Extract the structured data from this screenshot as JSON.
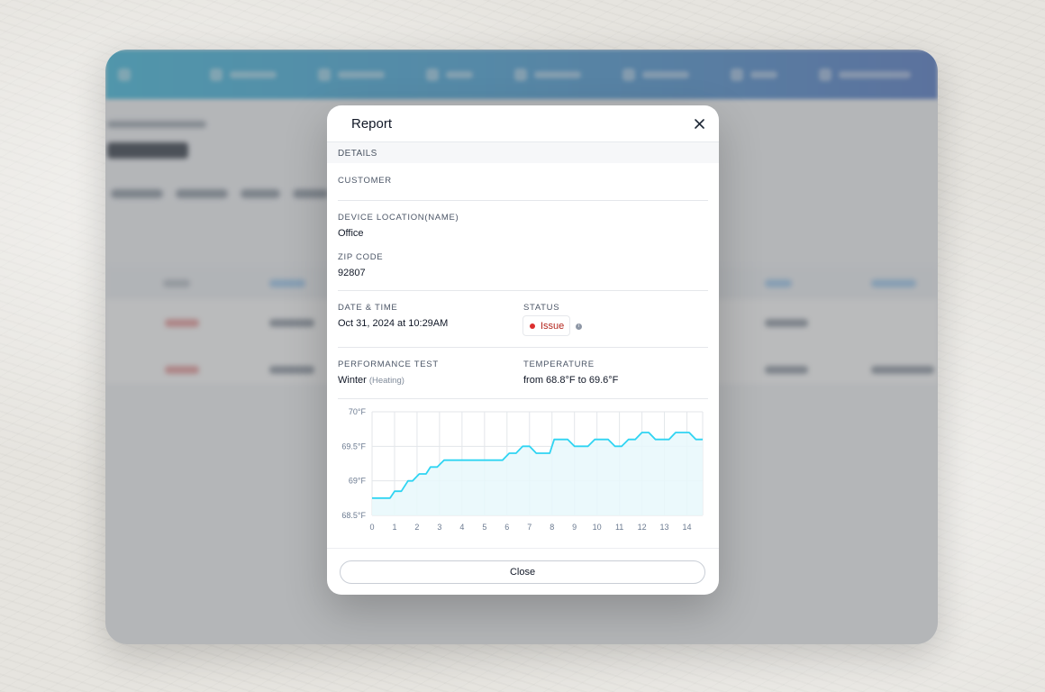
{
  "modal": {
    "title": "Report",
    "section_label": "DETAILS",
    "customer": {
      "label": "CUSTOMER",
      "value": ""
    },
    "device_location": {
      "label": "DEVICE LOCATION(NAME)",
      "value": "Office"
    },
    "zip": {
      "label": "ZIP CODE",
      "value": "92807"
    },
    "date_time": {
      "label": "DATE & TIME",
      "value": "Oct 31, 2024 at 10:29AM"
    },
    "status": {
      "label": "STATUS",
      "value": "Issue",
      "color": "#dc2e2e"
    },
    "performance_test": {
      "label": "PERFORMANCE TEST",
      "value": "Winter",
      "mode": "(Heating)"
    },
    "temperature": {
      "label": "TEMPERATURE",
      "value": "from 68.8°F to 69.6°F"
    },
    "close_label": "Close"
  },
  "chart_data": {
    "type": "area",
    "x": [
      0,
      0.3,
      0.6,
      0.8,
      1.0,
      1.3,
      1.6,
      1.8,
      2.1,
      2.4,
      2.6,
      2.9,
      3.2,
      3.6,
      4.0,
      4.5,
      5.0,
      5.5,
      5.8,
      6.1,
      6.4,
      6.7,
      7.0,
      7.3,
      7.6,
      7.9,
      8.1,
      8.4,
      8.7,
      9.0,
      9.3,
      9.6,
      9.9,
      10.2,
      10.5,
      10.8,
      11.1,
      11.4,
      11.7,
      12.0,
      12.3,
      12.6,
      12.9,
      13.2,
      13.5,
      13.8,
      14.1,
      14.4,
      14.7
    ],
    "y": [
      68.75,
      68.75,
      68.75,
      68.75,
      68.85,
      68.85,
      69.0,
      69.0,
      69.1,
      69.1,
      69.2,
      69.2,
      69.3,
      69.3,
      69.3,
      69.3,
      69.3,
      69.3,
      69.3,
      69.4,
      69.4,
      69.5,
      69.5,
      69.4,
      69.4,
      69.4,
      69.6,
      69.6,
      69.6,
      69.5,
      69.5,
      69.5,
      69.6,
      69.6,
      69.6,
      69.5,
      69.5,
      69.6,
      69.6,
      69.7,
      69.7,
      69.6,
      69.6,
      69.6,
      69.7,
      69.7,
      69.7,
      69.6,
      69.6
    ],
    "xticks": [
      "0",
      "1",
      "2",
      "3",
      "4",
      "5",
      "6",
      "7",
      "8",
      "9",
      "10",
      "11",
      "12",
      "13",
      "14"
    ],
    "yticks": [
      "70°F",
      "69.5°F",
      "69°F",
      "68.5°F"
    ],
    "xlim": [
      0,
      14.7
    ],
    "ylim": [
      68.5,
      70
    ],
    "grid": true,
    "line_color": "#2fd4f2",
    "fill_color": "#e7f8fc"
  }
}
